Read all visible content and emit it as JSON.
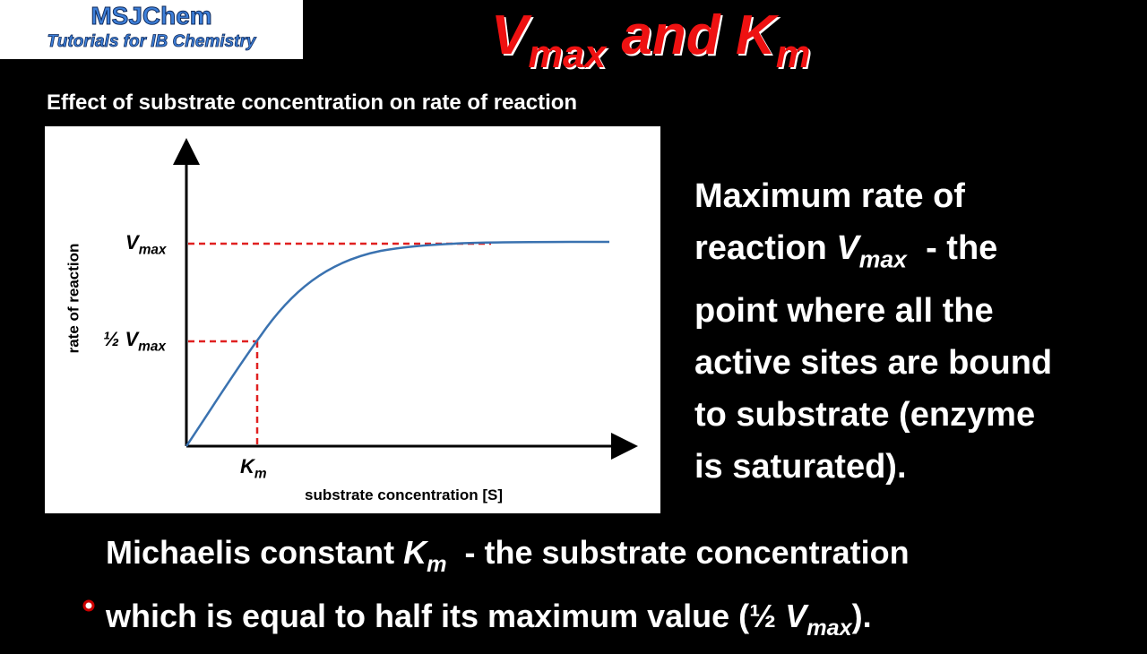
{
  "logo": {
    "line1": "MSJChem",
    "line2": "Tutorials for IB Chemistry"
  },
  "title": [
    {
      "text": "V"
    },
    {
      "text": "max",
      "style": "sub"
    },
    {
      "text": " and "
    },
    {
      "text": "K"
    },
    {
      "text": "m",
      "style": "sub"
    }
  ],
  "graph": {
    "heading": "Effect of substrate concentration on rate of reaction",
    "y_label": "rate of reaction",
    "x_label": "substrate concentration [S]",
    "vmax_label": [
      {
        "text": "V"
      },
      {
        "text": "max",
        "style": "sub"
      }
    ],
    "half_vmax_label": [
      {
        "text": "½ V"
      },
      {
        "text": "max",
        "style": "sub"
      }
    ],
    "km_label": [
      {
        "text": "K"
      },
      {
        "text": "m",
        "style": "sub"
      }
    ]
  },
  "definition_vmax": [
    [
      {
        "text": "Maximum rate of"
      }
    ],
    [
      {
        "text": "reaction "
      },
      {
        "text": "V",
        "style": "italic"
      },
      {
        "text": "max",
        "style": "sub"
      },
      {
        "text": "  - the"
      }
    ],
    [
      {
        "text": "point where all the"
      }
    ],
    [
      {
        "text": "active sites are bound"
      }
    ],
    [
      {
        "text": "to substrate (enzyme"
      }
    ],
    [
      {
        "text": "is saturated)."
      }
    ]
  ],
  "definition_km": [
    [
      {
        "text": "Michaelis constant "
      },
      {
        "text": "K",
        "style": "italic"
      },
      {
        "text": "m",
        "style": "sub"
      },
      {
        "text": "  - the substrate concentration"
      }
    ],
    [
      {
        "text": "which is equal to half its maximum value (½ "
      },
      {
        "text": "V",
        "style": "italic"
      },
      {
        "text": "max",
        "style": "sub"
      },
      {
        "text": ")."
      }
    ]
  ]
}
